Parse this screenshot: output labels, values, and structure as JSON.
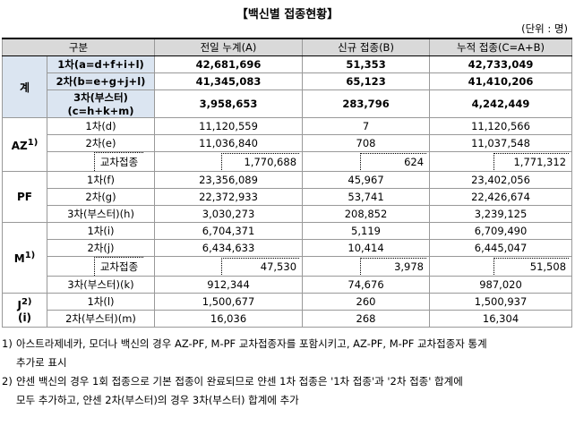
{
  "title": "【백신별 접종현황】",
  "unit": "(단위 : 명)",
  "table": {
    "header": [
      "구분",
      "전일 누계(A)",
      "신규 접종(B)",
      "누적 접종(C=A+B)"
    ],
    "groups": [
      {
        "label": "계",
        "rows": [
          {
            "label": "1차(a=d+f+i+l)",
            "values": [
              "42,681,696",
              "51,353",
              "42,733,049"
            ]
          },
          {
            "label": "2차(b=e+g+j+l)",
            "values": [
              "41,345,083",
              "65,123",
              "41,410,206"
            ]
          },
          {
            "label": "3차(부스터)",
            "sublabel": "(c=h+k+m)",
            "values": [
              "3,958,653",
              "283,796",
              "4,242,449"
            ]
          }
        ]
      },
      {
        "label": "AZ",
        "note": "1)",
        "rows": [
          {
            "label": "1차(d)",
            "values": [
              "11,120,559",
              "7",
              "11,120,566"
            ]
          },
          {
            "label": "2차(e)",
            "values": [
              "11,036,840",
              "708",
              "11,037,548"
            ]
          },
          {
            "label": "교차접종",
            "values": [
              "1,770,688",
              "624",
              "1,771,312"
            ]
          }
        ]
      },
      {
        "label": "PF",
        "rows": [
          {
            "label": "1차(f)",
            "values": [
              "23,356,089",
              "45,967",
              "23,402,056"
            ]
          },
          {
            "label": "2차(g)",
            "values": [
              "22,372,933",
              "53,741",
              "22,426,674"
            ]
          },
          {
            "label": "3차(부스터)(h)",
            "values": [
              "3,030,273",
              "208,852",
              "3,239,125"
            ]
          }
        ]
      },
      {
        "label": "M",
        "note": "1)",
        "rows": [
          {
            "label": "1차(i)",
            "values": [
              "6,704,371",
              "5,119",
              "6,709,490"
            ]
          },
          {
            "label": "2차(j)",
            "values": [
              "6,434,633",
              "10,414",
              "6,445,047"
            ]
          },
          {
            "label": "교차접종",
            "values": [
              "47,530",
              "3,978",
              "51,508"
            ]
          },
          {
            "label": "3차(부스터)(k)",
            "values": [
              "912,344",
              "74,676",
              "987,020"
            ]
          }
        ]
      },
      {
        "label": "J",
        "note": "2)",
        "sublabel": "(i)",
        "rows": [
          {
            "label": "1차(l)",
            "values": [
              "1,500,677",
              "260",
              "1,500,937"
            ]
          },
          {
            "label": "2차(부스터)(m)",
            "values": [
              "16,036",
              "268",
              "16,304"
            ]
          }
        ]
      }
    ]
  },
  "notes": [
    {
      "marker": "1)",
      "lines": [
        "아스트라제네카, 모더나 백신의 경우 AZ-PF, M-PF 교차접종자를 포함시키고, AZ-PF, M-PF 교차접종자 통계",
        "추가로 표시"
      ]
    },
    {
      "marker": "2)",
      "lines": [
        "얀센 백신의 경우 1회 접종으로 기본 접종이 완료되므로 얀센 1차 접종은 '1차 접종'과 '2차 접종' 합계에",
        "모두 추가하고, 얀센 2차(부스터)의 경우 3차(부스터) 합계에 추가"
      ]
    }
  ]
}
